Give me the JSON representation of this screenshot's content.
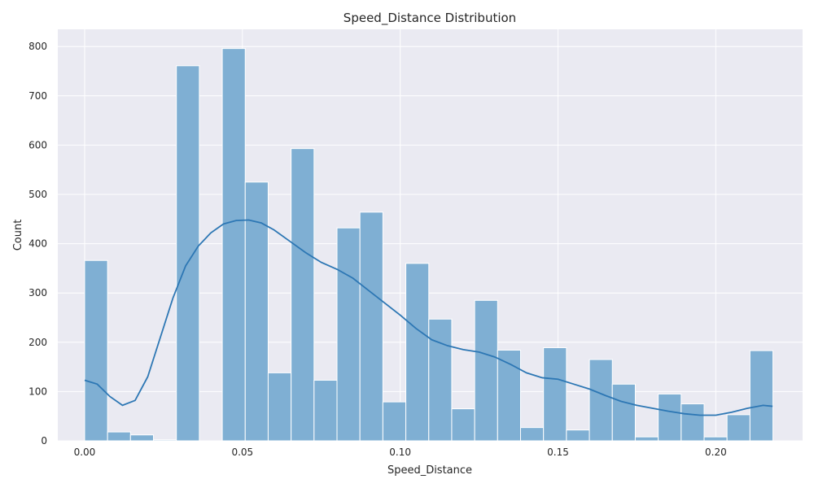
{
  "chart_data": {
    "type": "bar",
    "title": "Speed_Distance Distribution",
    "xlabel": "Speed_Distance",
    "ylabel": "Count",
    "xlim": [
      -0.0085,
      0.2275
    ],
    "ylim": [
      0,
      835
    ],
    "grid": true,
    "x_ticks": [
      0.0,
      0.05,
      0.1,
      0.15,
      0.2
    ],
    "x_tick_labels": [
      "0.00",
      "0.05",
      "0.10",
      "0.15",
      "0.20"
    ],
    "y_ticks": [
      0,
      100,
      200,
      300,
      400,
      500,
      600,
      700,
      800
    ],
    "y_tick_labels": [
      "0",
      "100",
      "200",
      "300",
      "400",
      "500",
      "600",
      "700",
      "800"
    ],
    "bin_start": 0.0,
    "bin_width": 0.00727,
    "values": [
      366,
      18,
      12,
      2,
      761,
      0,
      796,
      525,
      138,
      593,
      123,
      432,
      464,
      79,
      360,
      247,
      65,
      285,
      184,
      27,
      189,
      22,
      165,
      115,
      8,
      95,
      75,
      8,
      53,
      183
    ],
    "kde": {
      "x": [
        0.0,
        0.004,
        0.008,
        0.012,
        0.016,
        0.02,
        0.024,
        0.028,
        0.032,
        0.036,
        0.04,
        0.044,
        0.048,
        0.052,
        0.056,
        0.06,
        0.065,
        0.07,
        0.075,
        0.08,
        0.085,
        0.09,
        0.095,
        0.1,
        0.105,
        0.11,
        0.115,
        0.12,
        0.125,
        0.13,
        0.135,
        0.14,
        0.145,
        0.15,
        0.155,
        0.16,
        0.165,
        0.17,
        0.175,
        0.18,
        0.185,
        0.19,
        0.195,
        0.2,
        0.205,
        0.21,
        0.215,
        0.218
      ],
      "y": [
        123,
        115,
        90,
        72,
        82,
        130,
        210,
        290,
        355,
        395,
        422,
        440,
        447,
        448,
        442,
        428,
        405,
        382,
        362,
        348,
        330,
        305,
        280,
        255,
        228,
        205,
        193,
        185,
        180,
        170,
        155,
        138,
        128,
        125,
        115,
        105,
        92,
        80,
        72,
        66,
        60,
        55,
        52,
        52,
        58,
        66,
        72,
        70
      ]
    },
    "colors": {
      "bar_fill": "#7fafd3",
      "bar_edge": "#ffffff",
      "kde_line": "#2d77b4",
      "plot_bg": "#eaeaf2",
      "grid": "#ffffff",
      "text": "#262626"
    }
  }
}
